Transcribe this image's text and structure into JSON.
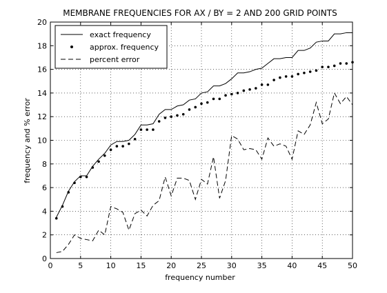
{
  "chart_data": {
    "type": "line",
    "title": "MEMBRANE FREQUENCIES FOR AX / BY = 2 AND 200 GRID POINTS",
    "xlabel": "frequency number",
    "ylabel": "frequency and % error",
    "xlim": [
      0,
      50
    ],
    "ylim": [
      0,
      20
    ],
    "xticks": [
      0,
      5,
      10,
      15,
      20,
      25,
      30,
      35,
      40,
      45,
      50
    ],
    "yticks": [
      0,
      2,
      4,
      6,
      8,
      10,
      12,
      14,
      16,
      18,
      20
    ],
    "grid": true,
    "legend_position": "top-left",
    "x": [
      1,
      2,
      3,
      4,
      5,
      6,
      7,
      8,
      9,
      10,
      11,
      12,
      13,
      14,
      15,
      16,
      17,
      18,
      19,
      20,
      21,
      22,
      23,
      24,
      25,
      26,
      27,
      28,
      29,
      30,
      31,
      32,
      33,
      34,
      35,
      36,
      37,
      38,
      39,
      40,
      41,
      42,
      43,
      44,
      45,
      46,
      47,
      48,
      49,
      50
    ],
    "series": [
      {
        "name": "exact frequency",
        "style": "solid-line",
        "values": [
          3.5,
          4.5,
          5.7,
          6.5,
          7.0,
          7.0,
          7.8,
          8.4,
          8.9,
          9.6,
          9.9,
          9.9,
          10.0,
          10.5,
          11.3,
          11.3,
          11.4,
          12.2,
          12.6,
          12.6,
          12.9,
          13.0,
          13.4,
          13.5,
          14.0,
          14.1,
          14.6,
          14.6,
          14.8,
          15.2,
          15.7,
          15.7,
          15.8,
          16.0,
          16.1,
          16.5,
          16.9,
          16.9,
          17.0,
          17.0,
          17.6,
          17.6,
          17.8,
          18.3,
          18.4,
          18.4,
          19.0,
          19.0,
          19.1,
          19.1
        ]
      },
      {
        "name": "approx. frequency",
        "style": "dots",
        "values": [
          3.4,
          4.4,
          5.6,
          6.4,
          6.9,
          6.9,
          7.7,
          8.2,
          8.7,
          9.2,
          9.5,
          9.5,
          9.7,
          10.1,
          10.9,
          10.9,
          10.9,
          11.6,
          11.9,
          12.0,
          12.1,
          12.2,
          12.6,
          12.8,
          13.1,
          13.2,
          13.5,
          13.5,
          13.8,
          13.9,
          14.0,
          14.2,
          14.3,
          14.4,
          14.7,
          14.7,
          15.1,
          15.3,
          15.4,
          15.4,
          15.6,
          15.7,
          15.8,
          15.9,
          16.2,
          16.2,
          16.3,
          16.5,
          16.5,
          16.6
        ]
      },
      {
        "name": "percent error",
        "style": "dashed-line",
        "values": [
          0.5,
          0.6,
          1.2,
          2.0,
          1.7,
          1.6,
          1.5,
          2.4,
          2.0,
          4.4,
          4.2,
          3.9,
          2.4,
          3.8,
          4.1,
          3.6,
          4.5,
          4.9,
          6.9,
          5.3,
          6.8,
          6.8,
          6.6,
          5.0,
          6.7,
          6.3,
          8.6,
          5.1,
          6.6,
          10.4,
          10.1,
          9.2,
          9.3,
          9.2,
          8.4,
          10.2,
          9.5,
          9.7,
          9.5,
          8.4,
          10.8,
          10.5,
          11.3,
          13.2,
          11.4,
          11.8,
          14.0,
          13.1,
          13.7,
          13.0
        ]
      }
    ]
  }
}
